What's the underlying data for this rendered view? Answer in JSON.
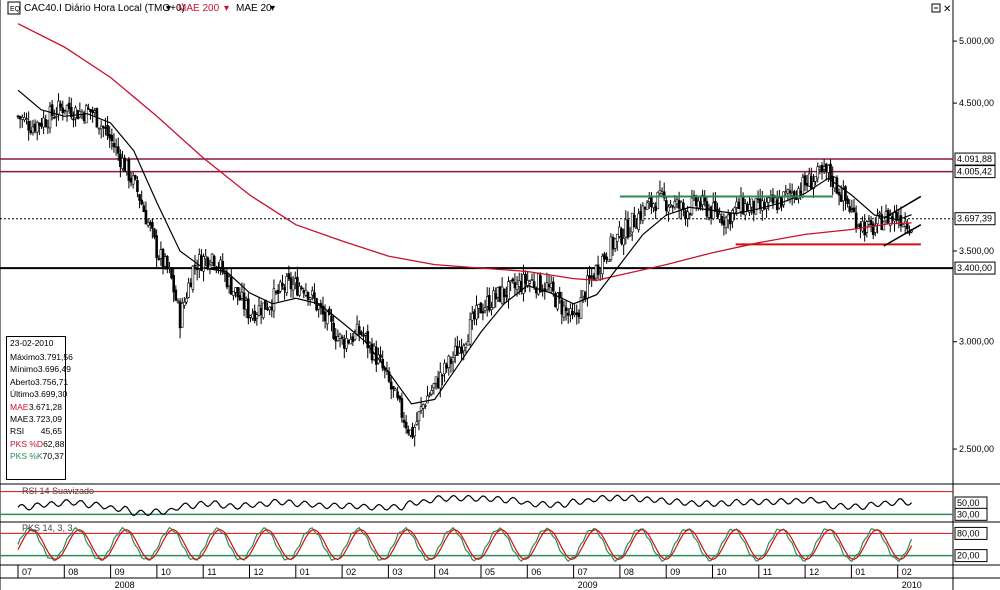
{
  "header": {
    "title": "CAC40.I Diário Hora Local (TMG+0)",
    "ma200_label": "MAE 200",
    "ma20_label": "MAE 20",
    "rsi_label": "RSI 14 Suavizado",
    "pks_label": "PKS 14, 3, 3"
  },
  "colors": {
    "ma200": "#c8102e",
    "ma20": "#000000",
    "support": "#8b1a3a",
    "green": "#2e8b57",
    "red": "#d01010",
    "candle": "#000000"
  },
  "info_panel": {
    "date": "23-02-2010",
    "rows": [
      {
        "k": "Máximo",
        "v": "3.791,56",
        "color": "#000000"
      },
      {
        "k": "Mínimo",
        "v": "3.696,49",
        "color": "#000000"
      },
      {
        "k": "Aberto",
        "v": "3.756,71",
        "color": "#000000"
      },
      {
        "k": "Último",
        "v": "3.699,30",
        "color": "#000000"
      },
      {
        "k": "MAE",
        "v": "3.671,28",
        "color": "#c8102e"
      },
      {
        "k": "MAE",
        "v": "3.723,09",
        "color": "#000000"
      },
      {
        "k": "RSI",
        "v": "45,65",
        "color": "#000000"
      },
      {
        "k": "PKS %D",
        "v": "62,88",
        "color": "#c8102e"
      },
      {
        "k": "PKS %K",
        "v": "70,37",
        "color": "#2e8b57"
      }
    ]
  },
  "chart_data": {
    "type": "candlestick",
    "title": "CAC40.I Diário Hora Local (TMG+0)",
    "y_scale": "log",
    "ylim": [
      2380,
      5200
    ],
    "y_ticks": [
      {
        "value": 5000,
        "label": "5.000,00"
      },
      {
        "value": 4500,
        "label": "4.500,00"
      },
      {
        "value": 3500,
        "label": "3.500,00"
      },
      {
        "value": 3000,
        "label": "3.000,00"
      },
      {
        "value": 2500,
        "label": "2.500,00"
      }
    ],
    "price_labels": [
      {
        "value": 4091.88,
        "label": "4.091,88"
      },
      {
        "value": 4005.42,
        "label": "4.005,42"
      },
      {
        "value": 3697.39,
        "label": "3.697,39"
      },
      {
        "value": 3400.0,
        "label": "3.400,00"
      }
    ],
    "x_months": [
      "07",
      "08",
      "09",
      "10",
      "11",
      "12",
      "01",
      "02",
      "03",
      "04",
      "05",
      "06",
      "07",
      "08",
      "09",
      "10",
      "11",
      "12",
      "01",
      "02"
    ],
    "x_years": [
      {
        "label": "2008",
        "month_index": 2
      },
      {
        "label": "2009",
        "month_index": 12
      },
      {
        "label": "2010",
        "month_index": 19
      }
    ],
    "close_path": [
      [
        0,
        4400
      ],
      [
        0.3,
        4330
      ],
      [
        0.6,
        4380
      ],
      [
        1.0,
        4480
      ],
      [
        1.3,
        4430
      ],
      [
        1.6,
        4440
      ],
      [
        2.0,
        4230
      ],
      [
        2.3,
        4050
      ],
      [
        2.6,
        3860
      ],
      [
        3.0,
        3500
      ],
      [
        3.3,
        3350
      ],
      [
        3.5,
        3120
      ],
      [
        3.8,
        3420
      ],
      [
        4.2,
        3480
      ],
      [
        4.6,
        3300
      ],
      [
        5.0,
        3150
      ],
      [
        5.4,
        3200
      ],
      [
        5.8,
        3300
      ],
      [
        6.2,
        3300
      ],
      [
        6.6,
        3130
      ],
      [
        7.0,
        3000
      ],
      [
        7.4,
        3050
      ],
      [
        7.8,
        2900
      ],
      [
        8.2,
        2700
      ],
      [
        8.5,
        2560
      ],
      [
        8.8,
        2720
      ],
      [
        9.2,
        2850
      ],
      [
        9.6,
        3000
      ],
      [
        10.0,
        3180
      ],
      [
        10.4,
        3250
      ],
      [
        10.7,
        3280
      ],
      [
        11.0,
        3330
      ],
      [
        11.4,
        3300
      ],
      [
        11.7,
        3200
      ],
      [
        12.0,
        3100
      ],
      [
        12.3,
        3300
      ],
      [
        12.6,
        3450
      ],
      [
        12.9,
        3560
      ],
      [
        13.2,
        3650
      ],
      [
        13.5,
        3750
      ],
      [
        13.8,
        3820
      ],
      [
        14.1,
        3800
      ],
      [
        14.4,
        3750
      ],
      [
        14.7,
        3800
      ],
      [
        15.0,
        3740
      ],
      [
        15.3,
        3700
      ],
      [
        15.6,
        3780
      ],
      [
        16.0,
        3760
      ],
      [
        16.4,
        3800
      ],
      [
        16.8,
        3880
      ],
      [
        17.2,
        3960
      ],
      [
        17.5,
        4000
      ],
      [
        17.8,
        3850
      ],
      [
        18.1,
        3700
      ],
      [
        18.4,
        3620
      ],
      [
        18.7,
        3700
      ],
      [
        19.0,
        3720
      ],
      [
        19.3,
        3660
      ]
    ],
    "ma200_path": [
      [
        0,
        5150
      ],
      [
        1.0,
        4950
      ],
      [
        2.0,
        4700
      ],
      [
        3.0,
        4400
      ],
      [
        4.0,
        4100
      ],
      [
        5.0,
        3850
      ],
      [
        6.0,
        3660
      ],
      [
        7.0,
        3560
      ],
      [
        8.0,
        3470
      ],
      [
        9.0,
        3420
      ],
      [
        10.0,
        3400
      ],
      [
        11.0,
        3380
      ],
      [
        12.0,
        3340
      ],
      [
        12.5,
        3330
      ],
      [
        13.0,
        3360
      ],
      [
        14.0,
        3420
      ],
      [
        15.0,
        3490
      ],
      [
        16.0,
        3550
      ],
      [
        17.0,
        3600
      ],
      [
        18.0,
        3630
      ],
      [
        18.8,
        3665
      ],
      [
        19.3,
        3671
      ]
    ],
    "ma20_path": [
      [
        0,
        4600
      ],
      [
        0.5,
        4450
      ],
      [
        1.0,
        4400
      ],
      [
        1.5,
        4420
      ],
      [
        2.0,
        4350
      ],
      [
        2.5,
        4150
      ],
      [
        3.0,
        3800
      ],
      [
        3.5,
        3500
      ],
      [
        4.0,
        3400
      ],
      [
        4.5,
        3380
      ],
      [
        5.0,
        3260
      ],
      [
        5.5,
        3200
      ],
      [
        6.0,
        3230
      ],
      [
        6.5,
        3200
      ],
      [
        7.0,
        3100
      ],
      [
        7.5,
        3000
      ],
      [
        8.0,
        2850
      ],
      [
        8.5,
        2700
      ],
      [
        9.0,
        2720
      ],
      [
        9.5,
        2880
      ],
      [
        10.0,
        3050
      ],
      [
        10.5,
        3200
      ],
      [
        11.0,
        3300
      ],
      [
        11.5,
        3260
      ],
      [
        12.0,
        3200
      ],
      [
        12.5,
        3250
      ],
      [
        13.0,
        3420
      ],
      [
        13.5,
        3600
      ],
      [
        14.0,
        3720
      ],
      [
        14.5,
        3770
      ],
      [
        15.0,
        3750
      ],
      [
        15.5,
        3730
      ],
      [
        16.0,
        3760
      ],
      [
        16.5,
        3800
      ],
      [
        17.0,
        3860
      ],
      [
        17.5,
        3960
      ],
      [
        18.0,
        3850
      ],
      [
        18.5,
        3720
      ],
      [
        19.0,
        3690
      ],
      [
        19.3,
        3723
      ]
    ],
    "annotations": {
      "horizontal_levels": [
        4091.88,
        4005.42,
        3697.39,
        3400.0
      ],
      "green_resistance": {
        "from_month": 13.0,
        "to_month": 17.6,
        "value": 3840
      },
      "red_support": {
        "from_month": 15.5,
        "to_month": 19.5,
        "value": 3540
      },
      "channel_upper": [
        [
          18.7,
          3700
        ],
        [
          19.5,
          3840
        ]
      ],
      "channel_lower": [
        [
          18.7,
          3530
        ],
        [
          19.5,
          3660
        ]
      ]
    },
    "rsi": {
      "label": "RSI 14 Suavizado",
      "ylim": [
        20,
        80
      ],
      "ticks": [
        {
          "value": 50,
          "label": "50,00"
        },
        {
          "value": 30,
          "label": "30,00"
        }
      ],
      "upper_line": 70,
      "lower_line": 30
    },
    "pks": {
      "label": "PKS 14, 3, 3",
      "ylim": [
        0,
        100
      ],
      "ticks": [
        {
          "value": 80,
          "label": "80,00"
        },
        {
          "value": 20,
          "label": "20,00"
        }
      ],
      "upper_line": 80,
      "lower_line": 20
    }
  }
}
